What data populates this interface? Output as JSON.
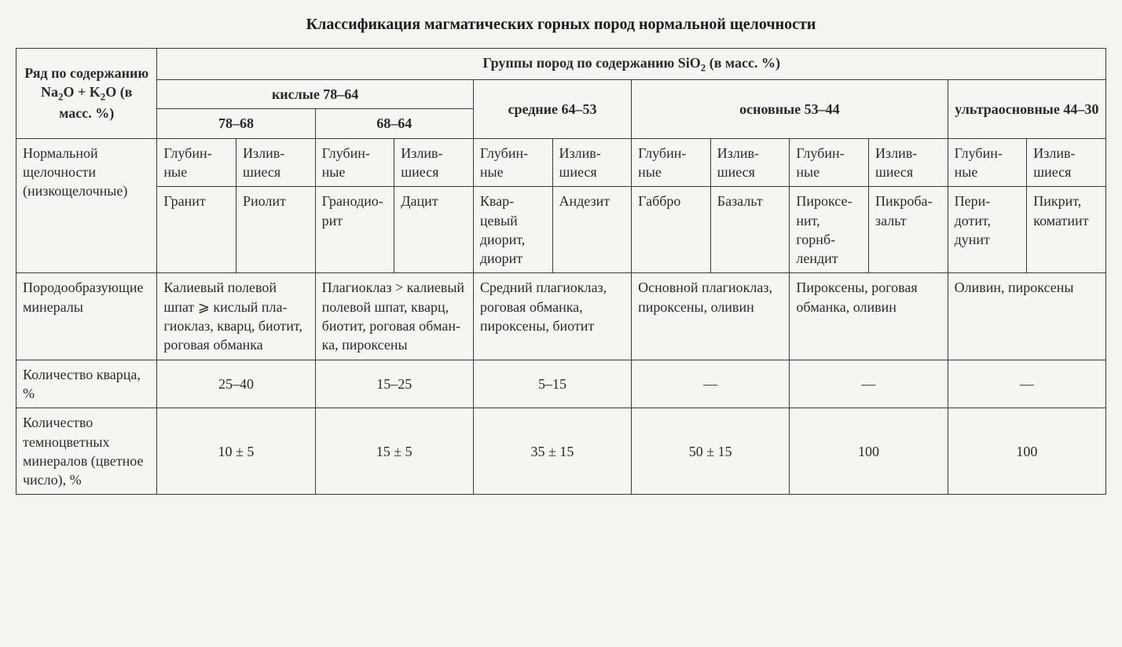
{
  "page": {
    "title": "Классификация магматических горных пород нормальной щелочности"
  },
  "table": {
    "header": {
      "row_label": "Ряд по содержанию Na₂O + K₂O (в масс. %)",
      "group_title": "Группы пород по содержанию SiO₂ (в масс. %)",
      "acidic": "кислые 78–64",
      "acidic_sub1": "78–68",
      "acidic_sub2": "68–64",
      "intermediate": "средние 64–53",
      "basic": "основные 53–44",
      "ultrabasic": "ультраоснов­ные 44–30"
    },
    "rows": {
      "series": {
        "label": "Нормальной щелочности (низкощелоч­ные)",
        "depth": {
          "deep": "Глу­бин­ные",
          "effusive": "Из­лив­шиеся"
        },
        "rocks": {
          "c1": "Гра­нит",
          "c2": "Рио­лит",
          "c3": "Грано­дио­рит",
          "c4": "Дацит",
          "c5": "Квар­цевый дио­рит, дио­рит",
          "c6": "Анде­зит",
          "c7": "Габбро",
          "c8": "Ба­зальт",
          "c9": "Пиро­ксе­нит, горнб­лендит",
          "c10": "Пик­роба­зальт",
          "c11": "Пери­дотит, дунит",
          "c12": "Пик­рит, кома­тиит"
        }
      },
      "minerals": {
        "label": "Породооб­разующие минералы",
        "c1": "Калиевый по­левой шпат ⩾ кислый пла­гиоклаз, кварц, биотит, рого­вая обманка",
        "c2": "Плагиоклаз > калиевый полевой шпат, кварц, биотит, роговая обман­ка, пироксены",
        "c3": "Средний плагиоклаз, ро­говая обманка, пироксены, биотит",
        "c4": "Основной плагиоклаз, пироксены, оливин",
        "c5": "Пироксены, роговая обман­ка, оливин",
        "c6": "Оливин, пироксены"
      },
      "quartz": {
        "label": "Количество кварца, %",
        "c1": "25–40",
        "c2": "15–25",
        "c3": "5–15",
        "c4": "—",
        "c5": "—",
        "c6": "—"
      },
      "mafic": {
        "label": "Количество темноцвет­ных минера­лов (цветное число), %",
        "c1": "10 ± 5",
        "c2": "15 ± 5",
        "c3": "35 ± 15",
        "c4": "50 ± 15",
        "c5": "100",
        "c6": "100"
      }
    }
  },
  "style": {
    "background_color": "#f5f4f1",
    "border_color": "#3a3a3a",
    "text_color": "#2a2a2a",
    "title_fontsize_pt": 15,
    "cell_fontsize_pt": 13.5,
    "font_family": "Times New Roman"
  }
}
